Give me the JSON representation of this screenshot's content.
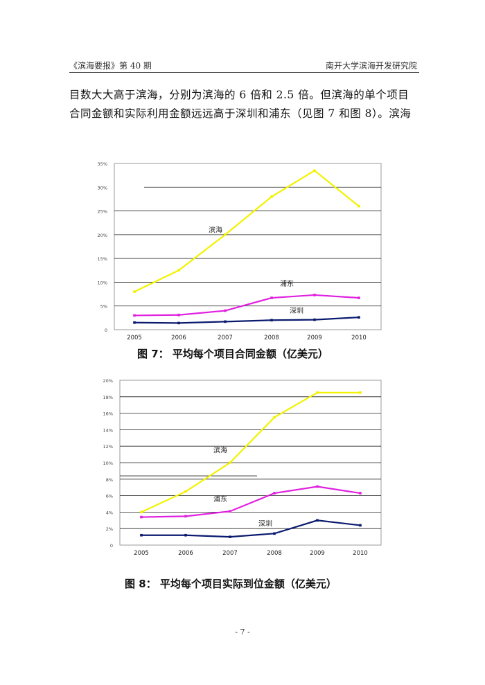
{
  "header": {
    "left": "《滨海要报》第 40 期",
    "right": "南开大学滨海开发研究院"
  },
  "body": {
    "line1": "目数大大高于滨海，分别为滨海的 6 倍和 2.5 倍。但滨海的单个项目",
    "line2": "合同金额和实际利用金额远远高于深圳和浦东（见图 7 和图 8）。滨海"
  },
  "chart_data": [
    {
      "type": "line",
      "caption": "图 7：  平均每个项目合同金额（亿美元）",
      "categories": [
        "2005",
        "2006",
        "2007",
        "2008",
        "2009",
        "2010"
      ],
      "y_ticks": [
        "0",
        "5%",
        "10%",
        "15%",
        "20%",
        "25%",
        "30%",
        "35%"
      ],
      "ylim": [
        0,
        35
      ],
      "series": [
        {
          "name": "滨海",
          "color": "#f2f200",
          "values": [
            8.0,
            12.5,
            20.0,
            28.0,
            33.5,
            26.0
          ]
        },
        {
          "name": "浦东",
          "color": "#e020e0",
          "values": [
            3.0,
            3.1,
            4.0,
            6.7,
            7.3,
            6.7
          ]
        },
        {
          "name": "深圳",
          "color": "#0a1a6e",
          "values": [
            1.5,
            1.4,
            1.7,
            2.0,
            2.1,
            2.6
          ]
        }
      ]
    },
    {
      "type": "line",
      "caption": "图 8：  平均每个项目实际到位金额（亿美元）",
      "categories": [
        "2005",
        "2006",
        "2007",
        "2008",
        "2009",
        "2010"
      ],
      "y_ticks": [
        "0",
        "2%",
        "4%",
        "6%",
        "8%",
        "10%",
        "12%",
        "14%",
        "16%",
        "18%",
        "20%"
      ],
      "ylim": [
        0,
        20
      ],
      "series": [
        {
          "name": "滨海",
          "color": "#f2f200",
          "values": [
            4.0,
            6.5,
            10.0,
            15.5,
            18.5,
            18.5
          ]
        },
        {
          "name": "浦东",
          "color": "#e020e0",
          "values": [
            3.4,
            3.5,
            4.1,
            6.3,
            7.1,
            6.3
          ]
        },
        {
          "name": "深圳",
          "color": "#0a1a6e",
          "values": [
            1.2,
            1.2,
            1.0,
            1.4,
            3.0,
            2.4
          ]
        }
      ]
    }
  ],
  "page_number": "- 7 -"
}
